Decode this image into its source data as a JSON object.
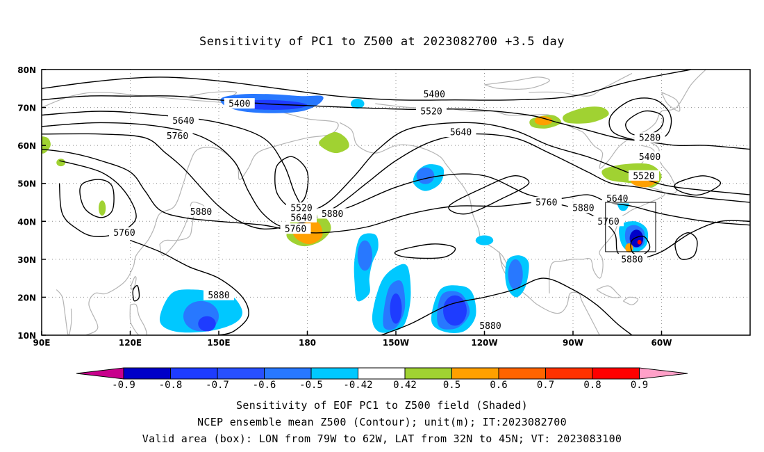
{
  "title": "Sensitivity of PC1 to Z500 at 2023082700 +3.5 day",
  "map": {
    "lat_labels": [
      "80N",
      "70N",
      "60N",
      "50N",
      "40N",
      "30N",
      "20N",
      "10N"
    ],
    "lon_labels": [
      "90E",
      "120E",
      "150E",
      "180",
      "150W",
      "120W",
      "90W",
      "60W"
    ],
    "contour_labels": [
      {
        "text": "5400",
        "lon": 157,
        "lat": 71
      },
      {
        "text": "5640",
        "lon": 138,
        "lat": 66.5
      },
      {
        "text": "5760",
        "lon": 136,
        "lat": 62.5
      },
      {
        "text": "5760",
        "lon": 118,
        "lat": 37
      },
      {
        "text": "5880",
        "lon": 144,
        "lat": 42.5
      },
      {
        "text": "5880",
        "lon": 150,
        "lat": 20.5
      },
      {
        "text": "5520",
        "lon": 178,
        "lat": 43.5
      },
      {
        "text": "5640",
        "lon": 178,
        "lat": 41
      },
      {
        "text": "5760",
        "lon": 176,
        "lat": 38
      },
      {
        "text": "5880",
        "lon": 188.5,
        "lat": 42
      },
      {
        "text": "5400",
        "lon": 223,
        "lat": 73.5
      },
      {
        "text": "5520",
        "lon": 222,
        "lat": 69
      },
      {
        "text": "5640",
        "lon": 232,
        "lat": 63.5
      },
      {
        "text": "5760",
        "lon": 261,
        "lat": 45
      },
      {
        "text": "5880",
        "lon": 273.5,
        "lat": 43.5
      },
      {
        "text": "5880",
        "lon": 242,
        "lat": 12.5
      },
      {
        "text": "5280",
        "lon": 296,
        "lat": 62
      },
      {
        "text": "5400",
        "lon": 296,
        "lat": 57
      },
      {
        "text": "5520",
        "lon": 294,
        "lat": 52
      },
      {
        "text": "5640",
        "lon": 285,
        "lat": 46
      },
      {
        "text": "5760",
        "lon": 282,
        "lat": 40
      },
      {
        "text": "5880",
        "lon": 290,
        "lat": 30
      }
    ],
    "valid_box": {
      "lon_min": 281,
      "lon_max": 298,
      "lat_min": 32,
      "lat_max": 45
    },
    "colors": {
      "dark_blue": "#0000c8",
      "blue": "#1e3cff",
      "mid_blue": "#2878ff",
      "light_blue": "#00c8ff",
      "green": "#a0d232",
      "orange": "#ffa000",
      "red": "#ff0000",
      "contour": "#000000",
      "coast": "#b4b4b4",
      "grid": "#8c8c8c"
    }
  },
  "colorbar": {
    "labels": [
      "-0.9",
      "-0.8",
      "-0.7",
      "-0.6",
      "-0.5",
      "-0.42",
      "0.42",
      "0.5",
      "0.6",
      "0.7",
      "0.8",
      "0.9"
    ],
    "colors": [
      "#0000c8",
      "#1e3cff",
      "#2850ff",
      "#2878ff",
      "#00c8ff",
      "#ffffff",
      "#a0d232",
      "#ffa000",
      "#ff6400",
      "#ff3200",
      "#ff0000"
    ],
    "low_extension": "#c8008c",
    "high_extension": "#ffa0c8"
  },
  "captions": [
    "Sensitivity of EOF PC1 to Z500 field (Shaded)",
    "NCEP ensemble mean Z500 (Contour); unit(m); IT:2023082700",
    "Valid area (box): LON from 79W to 62W, LAT from 32N to 45N; VT: 2023083100"
  ]
}
